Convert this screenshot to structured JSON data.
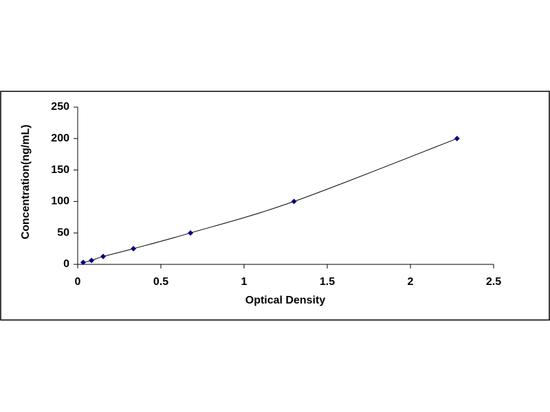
{
  "chart_data": {
    "type": "scatter",
    "x_label": "Optical Density",
    "y_label": "Concentration(ng/mL)",
    "xlim": [
      0,
      2.5
    ],
    "xticks": [
      0,
      0.5,
      1,
      1.5,
      2,
      2.5
    ],
    "ylim": [
      0,
      250
    ],
    "yticks": [
      0,
      50,
      100,
      150,
      200,
      250
    ],
    "grid": false,
    "smooth_line": true,
    "line_color": "#000000",
    "series": [
      {
        "color": "#000080",
        "x": [
          0.033,
          0.083,
          0.153,
          0.335,
          0.678,
          1.3,
          2.28
        ],
        "values": [
          3.12,
          6.25,
          12.5,
          25,
          50,
          100,
          200
        ]
      }
    ]
  }
}
